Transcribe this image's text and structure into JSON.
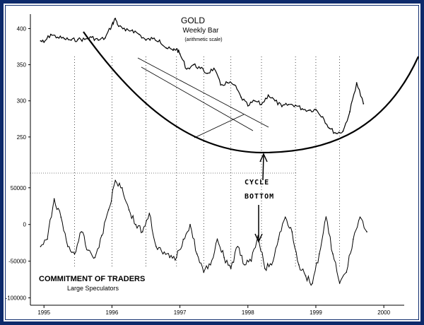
{
  "colors": {
    "frame": "#0d2a6b",
    "ink": "#000000"
  },
  "chart_data": [
    {
      "type": "line",
      "title": "GOLD",
      "subtitle": "Weekly Bar",
      "note": "(arithmetic scale)",
      "xlabel": "",
      "ylabel": "",
      "ylim": [
        200,
        420
      ],
      "yticks": [
        "400",
        "350",
        "300",
        "250"
      ],
      "ytick_values": [
        400,
        350,
        300,
        250
      ],
      "x": [
        1994.95,
        1995.0,
        1995.1,
        1995.2,
        1995.3,
        1995.4,
        1995.5,
        1995.6,
        1995.7,
        1995.8,
        1995.9,
        1996.0,
        1996.05,
        1996.1,
        1996.2,
        1996.3,
        1996.4,
        1996.5,
        1996.6,
        1996.7,
        1996.8,
        1996.9,
        1996.95,
        1997.0,
        1997.1,
        1997.2,
        1997.3,
        1997.4,
        1997.5,
        1997.6,
        1997.7,
        1997.8,
        1997.9,
        1998.0,
        1998.1,
        1998.2,
        1998.3,
        1998.4,
        1998.5,
        1998.6,
        1998.7,
        1998.8,
        1998.9,
        1999.0,
        1999.1,
        1999.2,
        1999.3,
        1999.4,
        1999.5,
        1999.6,
        1999.7
      ],
      "values": [
        383,
        381,
        392,
        388,
        386,
        384,
        385,
        385,
        388,
        384,
        387,
        405,
        414,
        403,
        397,
        398,
        392,
        384,
        386,
        384,
        373,
        370,
        372,
        365,
        344,
        350,
        345,
        338,
        345,
        322,
        325,
        322,
        305,
        293,
        300,
        295,
        308,
        300,
        292,
        295,
        294,
        289,
        287,
        288,
        278,
        262,
        255,
        258,
        285,
        325,
        296
      ],
      "series": [
        {
          "name": "Large Speculators",
          "x": [
            1994.95,
            1995.05,
            1995.15,
            1995.25,
            1995.35,
            1995.45,
            1995.55,
            1995.65,
            1995.75,
            1995.85,
            1995.95,
            1996.05,
            1996.15,
            1996.25,
            1996.35,
            1996.45,
            1996.55,
            1996.65,
            1996.75,
            1996.85,
            1996.95,
            1997.05,
            1997.15,
            1997.25,
            1997.35,
            1997.45,
            1997.55,
            1997.65,
            1997.75,
            1997.85,
            1997.95,
            1998.05,
            1998.15,
            1998.25,
            1998.35,
            1998.45,
            1998.55,
            1998.65,
            1998.75,
            1998.85,
            1998.95,
            1999.05,
            1999.15,
            1999.25,
            1999.35,
            1999.45,
            1999.55,
            1999.65,
            1999.75
          ],
          "values": [
            -30000,
            -20000,
            35000,
            10000,
            -30000,
            -40000,
            -10000,
            -35000,
            -45000,
            -15000,
            20000,
            60000,
            50000,
            20000,
            0,
            -10000,
            15000,
            -30000,
            -40000,
            -45000,
            -45000,
            -20000,
            0,
            -40000,
            -65000,
            -55000,
            -20000,
            -45000,
            -60000,
            -30000,
            -55000,
            -50000,
            -15000,
            -60000,
            -55000,
            -20000,
            10000,
            -10000,
            -55000,
            -70000,
            -80000,
            -40000,
            10000,
            -40000,
            -80000,
            -65000,
            -20000,
            10000,
            -10000
          ]
        }
      ],
      "ylim_cot": [
        -110000,
        70000
      ],
      "cot_yticks": [
        "50000",
        "0",
        "-50000",
        "-100000"
      ],
      "cot_ytick_values": [
        50000,
        0,
        -50000,
        -100000
      ],
      "cot_title": "COMMITMENT OF TRADERS",
      "cot_subtitle": "Large Speculators",
      "xlim": [
        1994.8,
        2000.3
      ],
      "x_tick_labels": [
        "1995",
        "1996",
        "1997",
        "1998",
        "1999",
        "2000"
      ],
      "x_tick_values": [
        1995,
        1996,
        1997,
        1998,
        1999,
        2000
      ],
      "annotation": "CYCLE BOTTOM",
      "grid": false,
      "legend": "none"
    }
  ]
}
